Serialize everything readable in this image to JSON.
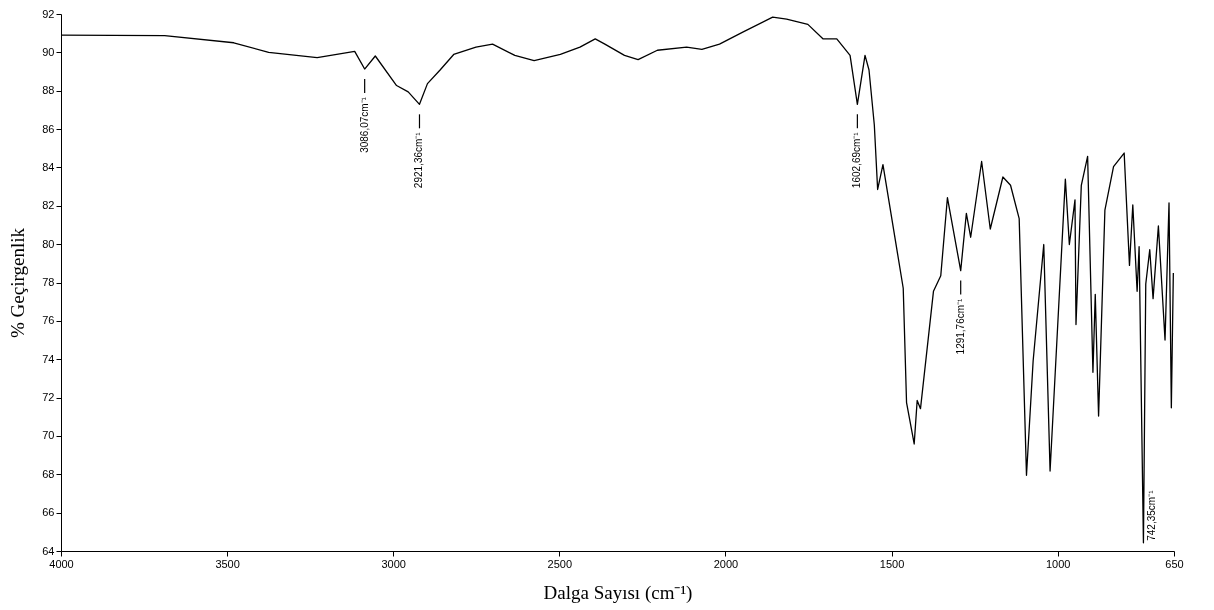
{
  "chart_data": {
    "type": "line",
    "xlabel": "Dalga Sayısı (cm⁻¹)",
    "ylabel": "% Geçirgenlik",
    "xlim": [
      4000,
      650
    ],
    "xticks": [
      4000,
      3500,
      3000,
      2500,
      2000,
      1500,
      1000,
      650
    ],
    "ylim": [
      64,
      92
    ],
    "yticks": [
      64,
      66,
      68,
      70,
      72,
      74,
      76,
      78,
      80,
      82,
      84,
      86,
      88,
      90,
      92
    ],
    "x": [
      4000,
      3688,
      3480,
      3375,
      3229,
      3116,
      3086,
      3054,
      2990,
      2955,
      2921,
      2897,
      2859,
      2818,
      2751,
      2701,
      2634,
      2576,
      2497,
      2438,
      2392,
      2363,
      2304,
      2263,
      2205,
      2117,
      2071,
      2018,
      1945,
      1858,
      1816,
      1752,
      1706,
      1665,
      1625,
      1603,
      1580,
      1568,
      1552,
      1542,
      1526,
      1465,
      1455,
      1432,
      1423,
      1413,
      1374,
      1352,
      1332,
      1292,
      1275,
      1262,
      1229,
      1203,
      1165,
      1142,
      1116,
      1094,
      1074,
      1042,
      1023,
      977,
      965,
      948,
      945,
      929,
      910,
      894,
      887,
      877,
      858,
      832,
      800,
      784,
      774,
      761,
      755,
      742,
      735,
      723,
      713,
      697,
      677,
      665,
      658,
      652
    ],
    "series": [
      {
        "color": "#000000",
        "values": [
          90.9,
          90.87,
          90.5,
          90.0,
          89.73,
          90.05,
          89.13,
          89.81,
          88.27,
          87.94,
          87.29,
          88.37,
          89.08,
          89.89,
          90.27,
          90.43,
          89.84,
          89.57,
          89.89,
          90.27,
          90.7,
          90.43,
          89.84,
          89.62,
          90.11,
          90.27,
          90.16,
          90.43,
          91.08,
          91.84,
          91.73,
          91.46,
          90.7,
          90.7,
          89.84,
          87.29,
          89.84,
          89.08,
          86.21,
          82.85,
          84.15,
          77.7,
          71.74,
          69.58,
          71.85,
          71.42,
          77.54,
          78.35,
          82.42,
          78.62,
          81.6,
          80.36,
          84.31,
          80.79,
          83.5,
          83.07,
          81.33,
          67.95,
          73.91,
          79.98,
          68.17,
          83.39,
          79.98,
          82.31,
          75.81,
          83.07,
          84.58,
          73.32,
          77.38,
          71.04,
          81.77,
          84.04,
          84.75,
          78.89,
          82.04,
          77.54,
          79.87,
          64.43,
          77.92,
          79.71,
          77.16,
          80.95,
          75.0,
          82.15,
          71.47,
          78.5
        ]
      }
    ],
    "annotations": [
      {
        "text": "3086,07cm⁻¹",
        "x": 3086,
        "y": 89.13
      },
      {
        "text": "2921,36cm⁻¹",
        "x": 2921,
        "y": 87.29
      },
      {
        "text": "1602,69cm⁻¹",
        "x": 1603,
        "y": 87.29
      },
      {
        "text": "1291,76cm⁻¹",
        "x": 1292,
        "y": 78.62
      },
      {
        "text": "742,35cm⁻¹",
        "x": 742,
        "y": 64.43
      }
    ]
  }
}
